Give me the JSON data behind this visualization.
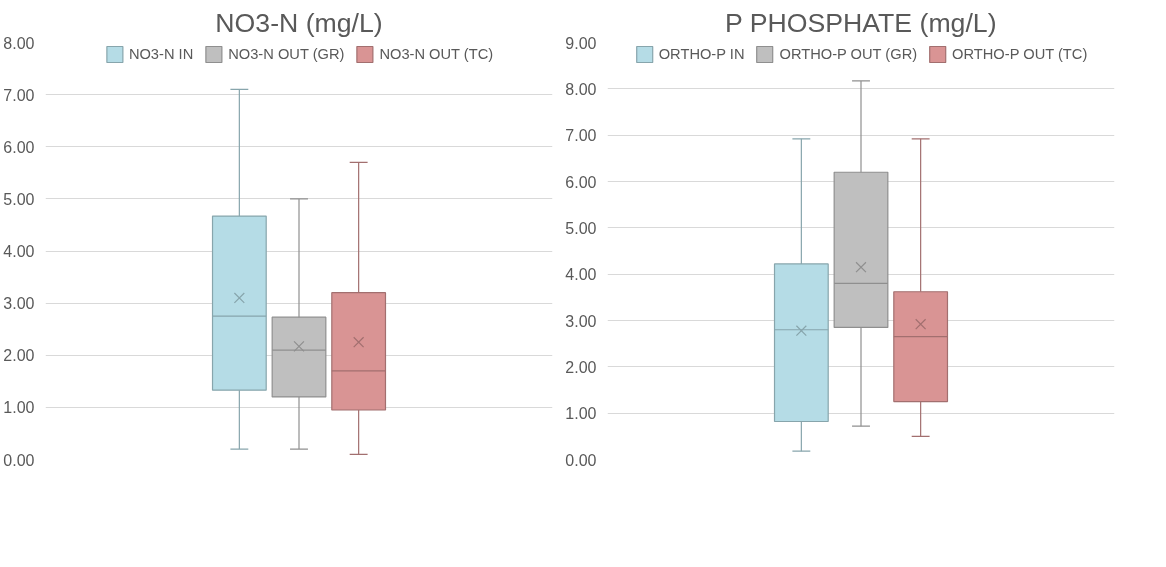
{
  "chart_data": [
    {
      "type": "box",
      "title": "NO3-N (mg/L)",
      "categories": [
        null
      ],
      "ylim": [
        0,
        8
      ],
      "yticks": [
        {
          "value": 0,
          "label": "0.00"
        },
        {
          "value": 1,
          "label": "1.00"
        },
        {
          "value": 2,
          "label": "2.00"
        },
        {
          "value": 3,
          "label": "3.00"
        },
        {
          "value": 4,
          "label": "4.00"
        },
        {
          "value": 5,
          "label": "5.00"
        },
        {
          "value": 6,
          "label": "6.00"
        },
        {
          "value": 7,
          "label": "7.00"
        },
        {
          "value": 8,
          "label": "8.00"
        }
      ],
      "grid": "y",
      "legend": "top",
      "tick_labels": "y",
      "series": [
        {
          "name": "NO3-N IN",
          "color": "#b5dce6",
          "boxes": [
            {
              "low": 0.2,
              "q1": 1.33,
              "median": 2.75,
              "q3": 4.67,
              "high": 7.1,
              "mean": 3.1
            }
          ]
        },
        {
          "name": "NO3-N OUT (GR)",
          "color": "#bfbfbf",
          "boxes": [
            {
              "low": 0.2,
              "q1": 1.2,
              "median": 2.1,
              "q3": 2.73,
              "high": 5.0,
              "mean": 2.17
            }
          ]
        },
        {
          "name": "NO3-N OUT (TC)",
          "color": "#d99494",
          "boxes": [
            {
              "low": 0.1,
              "q1": 0.95,
              "median": 1.7,
              "q3": 3.2,
              "high": 5.7,
              "mean": 2.25
            }
          ]
        }
      ]
    },
    {
      "type": "box",
      "title": "P PHOSPHATE (mg/L)",
      "categories": [
        null
      ],
      "ylim": [
        0,
        9
      ],
      "yticks": [
        {
          "value": 0,
          "label": "0.00"
        },
        {
          "value": 1,
          "label": "1.00"
        },
        {
          "value": 2,
          "label": "2.00"
        },
        {
          "value": 3,
          "label": "3.00"
        },
        {
          "value": 4,
          "label": "4.00"
        },
        {
          "value": 5,
          "label": "5.00"
        },
        {
          "value": 6,
          "label": "6.00"
        },
        {
          "value": 7,
          "label": "7.00"
        },
        {
          "value": 8,
          "label": "8.00"
        },
        {
          "value": 9,
          "label": "9.00"
        }
      ],
      "grid": "y",
      "legend": "top",
      "tick_labels": "y",
      "series": [
        {
          "name": "ORTHO-P IN",
          "color": "#b5dce6",
          "boxes": [
            {
              "low": 0.18,
              "q1": 0.82,
              "median": 2.8,
              "q3": 4.22,
              "high": 6.92,
              "mean": 2.78
            }
          ]
        },
        {
          "name": "ORTHO-P OUT (GR)",
          "color": "#bfbfbf",
          "boxes": [
            {
              "low": 0.72,
              "q1": 2.85,
              "median": 3.8,
              "q3": 6.2,
              "high": 8.17,
              "mean": 4.15
            }
          ]
        },
        {
          "name": "ORTHO-P OUT (TC)",
          "color": "#d99494",
          "boxes": [
            {
              "low": 0.5,
              "q1": 1.25,
              "median": 2.65,
              "q3": 3.62,
              "high": 6.92,
              "mean": 2.92
            }
          ]
        }
      ]
    }
  ]
}
